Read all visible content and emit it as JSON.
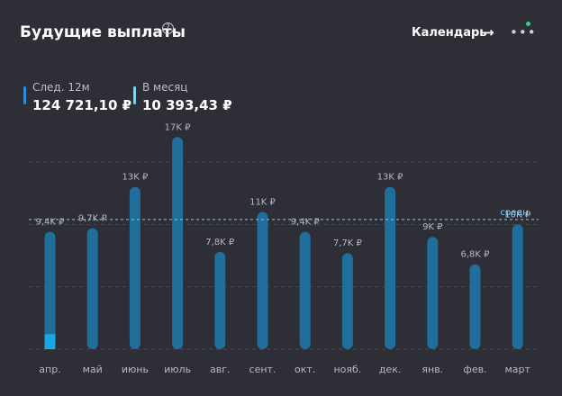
{
  "header": {
    "title": "Будущие выплаты",
    "help_icon": "question-circle-icon",
    "calendar_label": "Календарь",
    "arrow_icon": "arrow-right-icon",
    "more_icon": "more-dots-icon"
  },
  "stats": [
    {
      "label": "След. 12м",
      "value": "124 721,10 ₽",
      "color": "#2a8fd8"
    },
    {
      "label": "В месяц",
      "value": "10 393,43 ₽",
      "color": "#7fd2f0"
    }
  ],
  "chart_data": {
    "type": "bar",
    "categories": [
      "апр.",
      "май",
      "июнь",
      "июль",
      "авг.",
      "сент.",
      "окт.",
      "нояб.",
      "дек.",
      "янв.",
      "фев.",
      "март"
    ],
    "values": [
      9400,
      9700,
      13000,
      17000,
      7800,
      11000,
      9400,
      7700,
      13000,
      9000,
      6800,
      10000
    ],
    "value_labels": [
      "9,4K ₽",
      "9,7K ₽",
      "13K ₽",
      "17K ₽",
      "7,8K ₽",
      "11K ₽",
      "9,4K ₽",
      "7,7K ₽",
      "13K ₽",
      "9K ₽",
      "6,8K ₽",
      "10K ₽"
    ],
    "received_portion": [
      1200,
      0,
      0,
      0,
      0,
      0,
      0,
      0,
      0,
      0,
      0,
      0
    ],
    "average": 10393.43,
    "average_label": "средн.",
    "ylim": [
      0,
      18000
    ],
    "grid": true,
    "colors": {
      "bar": "#1f6e9c",
      "received": "#1aa7e8",
      "average": "#7fd2f0"
    }
  }
}
